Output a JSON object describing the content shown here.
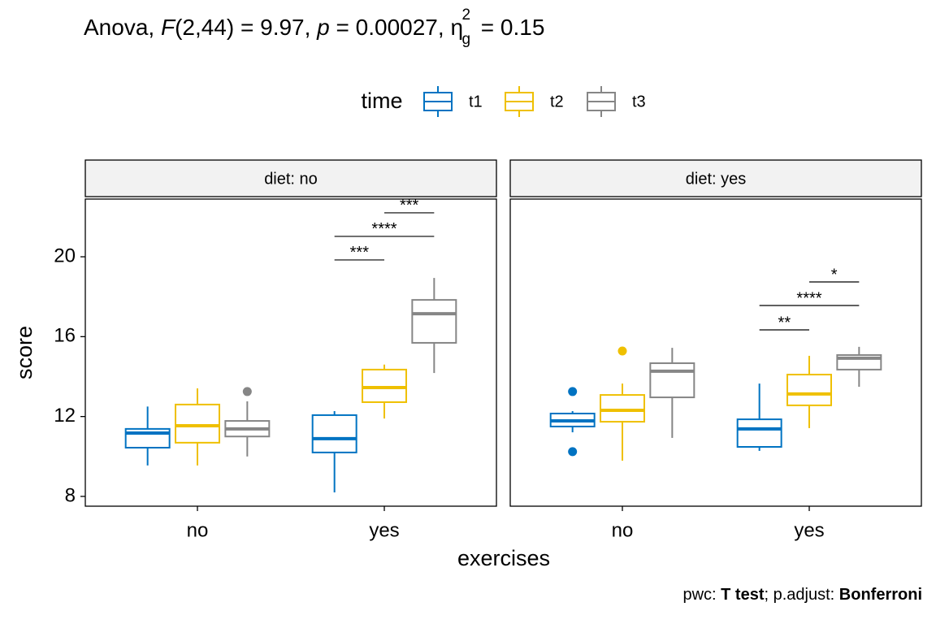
{
  "chart_data": {
    "type": "boxplot",
    "title_parts": [
      "Anova, ",
      "F",
      "(2,44) = 9.97, ",
      "p",
      " = 0.00027, ",
      "η",
      "2",
      "g",
      " = 0.15"
    ],
    "caption_parts": [
      "pwc: ",
      "T test",
      "; p.adjust: ",
      "Bonferroni"
    ],
    "legend_title": "time",
    "x_label": "exercises",
    "y_label": "score",
    "categories": [
      "no",
      "yes"
    ],
    "series": [
      {
        "name": "t1",
        "color": "#0073C2"
      },
      {
        "name": "t2",
        "color": "#EFC000"
      },
      {
        "name": "t3",
        "color": "#868686"
      }
    ],
    "ylim": [
      7.51,
      22.89
    ],
    "yticks": [
      8,
      12,
      16,
      20
    ],
    "facets": [
      {
        "label": "diet: no",
        "boxes": [
          [
            {
              "low": 9.55,
              "q1": 10.44,
              "median": 11.17,
              "q3": 11.38,
              "high": 12.5,
              "outliers": []
            },
            {
              "low": 8.2,
              "q1": 10.2,
              "median": 10.89,
              "q3": 12.07,
              "high": 12.27,
              "outliers": []
            }
          ],
          [
            {
              "low": 9.55,
              "q1": 10.69,
              "median": 11.54,
              "q3": 12.6,
              "high": 13.41,
              "outliers": []
            },
            {
              "low": 11.9,
              "q1": 12.72,
              "median": 13.45,
              "q3": 14.35,
              "high": 14.6,
              "outliers": []
            }
          ],
          [
            {
              "low": 10.0,
              "q1": 11.0,
              "median": 11.38,
              "q3": 11.78,
              "high": 12.76,
              "outliers": [
                13.25
              ]
            },
            {
              "low": 14.18,
              "q1": 15.69,
              "median": 17.15,
              "q3": 17.84,
              "high": 18.94,
              "outliers": []
            }
          ]
        ],
        "brackets": [
          {
            "category": "yes",
            "group1": "t1",
            "group2": "t2",
            "y": 19.84,
            "label": "***"
          },
          {
            "category": "yes",
            "group1": "t1",
            "group2": "t3",
            "y": 21.02,
            "label": "****"
          },
          {
            "category": "yes",
            "group1": "t2",
            "group2": "t3",
            "y": 22.2,
            "label": "***"
          }
        ]
      },
      {
        "label": "diet: yes",
        "boxes": [
          [
            {
              "low": 11.21,
              "q1": 11.5,
              "median": 11.78,
              "q3": 12.15,
              "high": 12.27,
              "outliers": [
                13.25,
                10.24
              ]
            },
            {
              "low": 10.28,
              "q1": 10.48,
              "median": 11.38,
              "q3": 11.86,
              "high": 13.65,
              "outliers": []
            }
          ],
          [
            {
              "low": 9.79,
              "q1": 11.74,
              "median": 12.31,
              "q3": 13.08,
              "high": 13.65,
              "outliers": [
                15.28
              ]
            },
            {
              "low": 11.42,
              "q1": 12.56,
              "median": 13.13,
              "q3": 14.1,
              "high": 15.04,
              "outliers": []
            }
          ],
          [
            {
              "low": 10.93,
              "q1": 12.96,
              "median": 14.27,
              "q3": 14.67,
              "high": 15.44,
              "outliers": []
            },
            {
              "low": 13.49,
              "q1": 14.35,
              "median": 14.92,
              "q3": 15.08,
              "high": 15.49,
              "outliers": []
            }
          ]
        ],
        "brackets": [
          {
            "category": "yes",
            "group1": "t1",
            "group2": "t2",
            "y": 16.34,
            "label": "**"
          },
          {
            "category": "yes",
            "group1": "t1",
            "group2": "t3",
            "y": 17.56,
            "label": "****"
          },
          {
            "category": "yes",
            "group1": "t2",
            "group2": "t3",
            "y": 18.74,
            "label": "*"
          }
        ]
      }
    ]
  }
}
